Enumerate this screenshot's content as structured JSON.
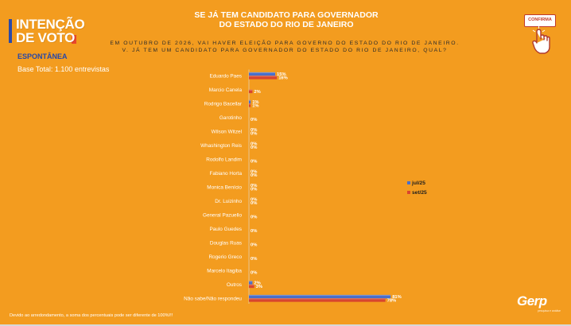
{
  "brand": {
    "line1": "INTENÇÃO",
    "line2": "DE VOTO",
    "subtitle": "ESPONTÂNEA",
    "base": "Base Total: 1.100 entrevistas"
  },
  "question": {
    "title_line1": "SE JÁ TEM CANDIDATO PARA GOVERNADOR",
    "title_line2": "DO ESTADO DO RIO DE JANEIRO",
    "text": "EM OUTUBRO DE 2026, VAI HAVER ELEIÇÃO PARA GOVERNO DO ESTADO DO RIO DE JANEIRO. V. JÁ TEM UM CANDIDATO PARA GOVERNADOR DO ESTADO DO RIO DE JANEIRO, QUAL?"
  },
  "confirma_label": "CONFIRMA",
  "footnote": "Devido ao arredondamento, a soma dos percentuais pode ser diferente de 100%!!!",
  "logo": {
    "name": "Gerp",
    "tagline": "pesquisa e análise"
  },
  "colors": {
    "background": "#f39c1f",
    "jul": "#4a6fc9",
    "set": "#d8452e"
  },
  "chart_data": {
    "type": "bar",
    "orientation": "horizontal",
    "categories": [
      "Eduardo Paes",
      "Marcio Canela",
      "Rodrigo Bacellar",
      "Garotinho",
      "Wilson Witzel",
      "Whashington Reis",
      "Rodolfo Landim",
      "Fabiano Horta",
      "Monica Benício",
      "Dr. Luizinho",
      "General Pazuello",
      "Paulo Guedes",
      "Douglas Ruas",
      "Rogerio Greco",
      "Marcelo Itagiba",
      "Outros",
      "Não sabe/Não respondeu"
    ],
    "series": [
      {
        "name": "jul/25",
        "values": [
          15,
          null,
          1,
          null,
          0,
          0,
          null,
          0,
          0,
          0,
          null,
          null,
          null,
          null,
          null,
          2,
          81
        ],
        "labels": [
          "15%",
          "",
          "1%",
          "",
          "0%",
          "0%",
          "",
          "0%",
          "0%",
          "0%",
          "",
          "",
          "",
          "",
          "",
          "2%",
          "81%"
        ]
      },
      {
        "name": "set/25",
        "values": [
          16,
          2,
          1,
          0,
          0,
          0,
          0,
          0,
          0,
          0,
          0,
          0,
          0,
          0,
          0,
          3,
          78
        ],
        "labels": [
          "16%",
          "2%",
          "1%",
          "0%",
          "0%",
          "0%",
          "0%",
          "0%",
          "0%",
          "0%",
          "0%",
          "0%",
          "0%",
          "0%",
          "0%",
          "3%",
          "78%"
        ]
      }
    ],
    "xlim": [
      0,
      100
    ],
    "legend": "right"
  }
}
